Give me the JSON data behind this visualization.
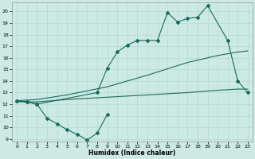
{
  "xlabel": "Humidex (Indice chaleur)",
  "bg_color": "#cce9e4",
  "grid_color": "#aad8d0",
  "line_color": "#1a6b5a",
  "xlim": [
    -0.5,
    23.5
  ],
  "ylim": [
    8.8,
    20.8
  ],
  "yticks": [
    9,
    10,
    11,
    12,
    13,
    14,
    15,
    16,
    17,
    18,
    19,
    20
  ],
  "xticks": [
    0,
    1,
    2,
    3,
    4,
    5,
    6,
    7,
    8,
    9,
    10,
    11,
    12,
    13,
    14,
    15,
    16,
    17,
    18,
    19,
    20,
    21,
    22,
    23
  ],
  "line_jagged_x": [
    0,
    1,
    2,
    3,
    4,
    5,
    6,
    7,
    8,
    9
  ],
  "line_jagged_y": [
    12.3,
    12.2,
    12.0,
    10.8,
    10.3,
    9.8,
    9.4,
    8.9,
    9.5,
    11.1
  ],
  "line_upper_x": [
    0,
    1,
    2,
    8,
    9,
    10,
    11,
    12,
    13,
    14,
    15,
    16,
    17,
    18,
    19,
    21,
    22,
    23
  ],
  "line_upper_y": [
    12.3,
    12.2,
    12.0,
    13.0,
    15.1,
    16.5,
    17.1,
    17.5,
    17.5,
    17.5,
    19.9,
    19.1,
    19.4,
    19.5,
    20.5,
    17.5,
    14.0,
    13.0
  ],
  "line_mid_x": [
    0,
    2,
    5,
    9,
    13,
    17,
    20,
    22,
    23
  ],
  "line_mid_y": [
    12.3,
    12.4,
    12.8,
    13.5,
    14.5,
    15.6,
    16.2,
    16.5,
    16.6
  ],
  "line_low_x": [
    0,
    2,
    5,
    9,
    13,
    17,
    20,
    22,
    23
  ],
  "line_low_y": [
    12.2,
    12.2,
    12.4,
    12.6,
    12.8,
    13.0,
    13.2,
    13.3,
    13.3
  ]
}
